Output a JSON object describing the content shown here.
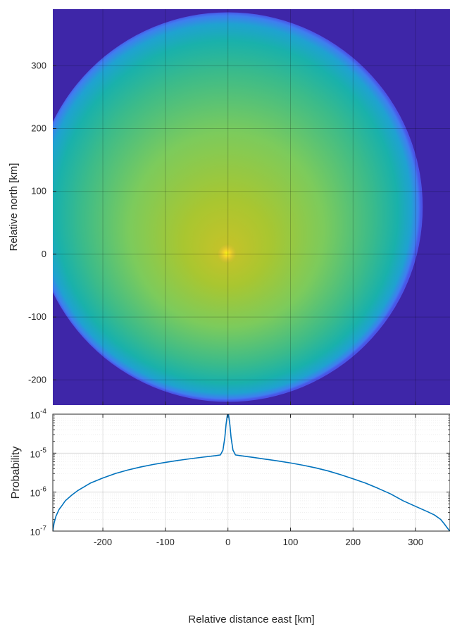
{
  "chart_data": [
    {
      "type": "heatmap",
      "xlim": [
        -280,
        355
      ],
      "ylim": [
        -240,
        390
      ],
      "ylabel": "Relative north [km]",
      "yticks": [
        -200,
        -100,
        0,
        100,
        200,
        300
      ],
      "ytick_labels": [
        "-200",
        "-100",
        "0",
        "100",
        "200",
        "300"
      ],
      "xticks": [
        -200,
        -100,
        0,
        100,
        200,
        300
      ],
      "grid": true,
      "colormap": "parula",
      "background_color": "#3e26a8",
      "disc": {
        "center": [
          0,
          75
        ],
        "radius": 310,
        "peak": [
          0,
          0
        ]
      }
    },
    {
      "type": "line",
      "xlabel": "Relative distance east [km]",
      "ylabel": "Probability",
      "xlim": [
        -280,
        355
      ],
      "ylim": [
        1e-07,
        0.0001
      ],
      "yscale": "log",
      "xticks": [
        -200,
        -100,
        0,
        100,
        200,
        300
      ],
      "xtick_labels": [
        "-200",
        "-100",
        "0",
        "100",
        "200",
        "300"
      ],
      "yticks": [
        1e-07,
        1e-06,
        1e-05,
        0.0001
      ],
      "ytick_labels": [
        {
          "base": "10",
          "exp": "-7"
        },
        {
          "base": "10",
          "exp": "-6"
        },
        {
          "base": "10",
          "exp": "-5"
        },
        {
          "base": "10",
          "exp": "-4"
        }
      ],
      "grid": true,
      "line_color": "#0072bd",
      "series": [
        {
          "x": [
            -280,
            -278,
            -275,
            -270,
            -265,
            -260,
            -250,
            -240,
            -220,
            -200,
            -180,
            -160,
            -140,
            -120,
            -100,
            -80,
            -60,
            -40,
            -20,
            -12,
            -8,
            -5,
            -3,
            -1,
            0,
            1,
            3,
            5,
            8,
            12,
            20,
            40,
            60,
            80,
            100,
            120,
            140,
            160,
            180,
            200,
            220,
            240,
            260,
            280,
            300,
            320,
            330,
            340,
            345,
            350,
            353,
            355
          ],
          "y": [
            1e-07,
            1.6e-07,
            2.4e-07,
            3.6e-07,
            4.6e-07,
            6e-07,
            8.3e-07,
            1.1e-06,
            1.7e-06,
            2.3e-06,
            3e-06,
            3.7e-06,
            4.4e-06,
            5.1e-06,
            5.8e-06,
            6.5e-06,
            7.2e-06,
            7.9e-06,
            8.6e-06,
            9e-06,
            1.2e-05,
            2.5e-05,
            5.5e-05,
            9.5e-05,
            0.0001,
            9.5e-05,
            5.5e-05,
            2.5e-05,
            1.2e-05,
            9e-06,
            8.6e-06,
            7.8e-06,
            7e-06,
            6.3e-06,
            5.6e-06,
            4.9e-06,
            4.2e-06,
            3.5e-06,
            2.8e-06,
            2.2e-06,
            1.7e-06,
            1.25e-06,
            9e-07,
            6e-07,
            4.3e-07,
            3.1e-07,
            2.6e-07,
            2e-07,
            1.6e-07,
            1.25e-07,
            1.08e-07,
            1e-07
          ]
        }
      ]
    }
  ]
}
